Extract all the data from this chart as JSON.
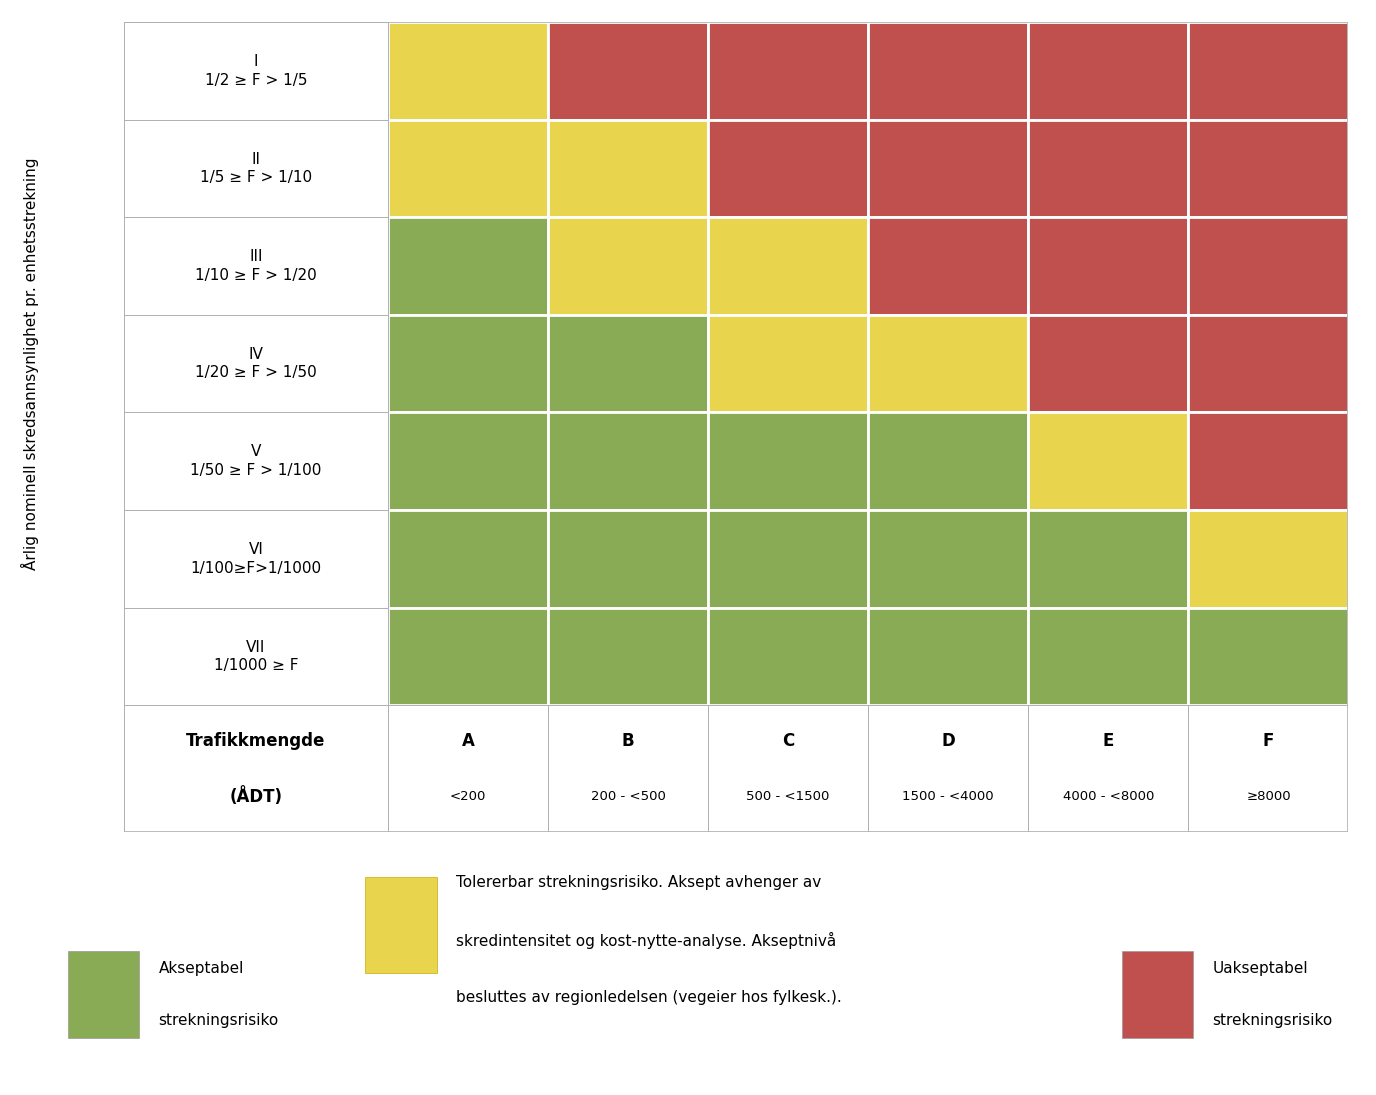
{
  "rows": [
    "I\n1/2 ≥ F > 1/5",
    "II\n1/5 ≥ F > 1/10",
    "III\n1/10 ≥ F > 1/20",
    "IV\n1/20 ≥ F > 1/50",
    "V\n1/50 ≥ F > 1/100",
    "VI\n1/100≥F>1/1000",
    "VII\n1/1000 ≥ F"
  ],
  "col_header_line1": [
    "A",
    "B",
    "C",
    "D",
    "E",
    "F"
  ],
  "col_header_line2": [
    "<200",
    "200 - <500",
    "500 - <1500",
    "1500 - <4000",
    "4000 - <8000",
    "≥8000"
  ],
  "ylabel": "Årlig nominell skredsannsynlighet pr. enhetsstrekning",
  "xlabel_line1": "Trafikkmengde",
  "xlabel_line2": "(ÅDT)",
  "green": "#8aab55",
  "yellow": "#e8d44d",
  "red": "#c0504d",
  "white": "#ffffff",
  "border_color": "#b0b0b0",
  "background": "#ffffff",
  "legend_green_label1": "Akseptabel",
  "legend_green_label2": "strekningsrisiko",
  "legend_yellow_label_line1": "Tolererbar strekningsrisiko. Aksept avhenger av",
  "legend_yellow_label_line2": "skredintensitet og kost-nytte-analyse. Akseptnivå",
  "legend_yellow_label_line3": "besluttes av regionledelsen (vegeier hos fylkesk.).",
  "legend_red_label1": "Uakseptabel",
  "legend_red_label2": "strekningsrisiko",
  "cell_colors": [
    [
      "yellow",
      "red",
      "red",
      "red",
      "red",
      "red"
    ],
    [
      "yellow",
      "yellow",
      "red",
      "red",
      "red",
      "red"
    ],
    [
      "green",
      "yellow",
      "yellow",
      "red",
      "red",
      "red"
    ],
    [
      "green",
      "green",
      "yellow",
      "yellow",
      "red",
      "red"
    ],
    [
      "green",
      "green",
      "green",
      "green",
      "yellow",
      "red"
    ],
    [
      "green",
      "green",
      "green",
      "green",
      "green",
      "yellow"
    ],
    [
      "green",
      "green",
      "green",
      "green",
      "green",
      "green"
    ]
  ],
  "fig_width": 13.76,
  "fig_height": 10.95,
  "dpi": 100
}
